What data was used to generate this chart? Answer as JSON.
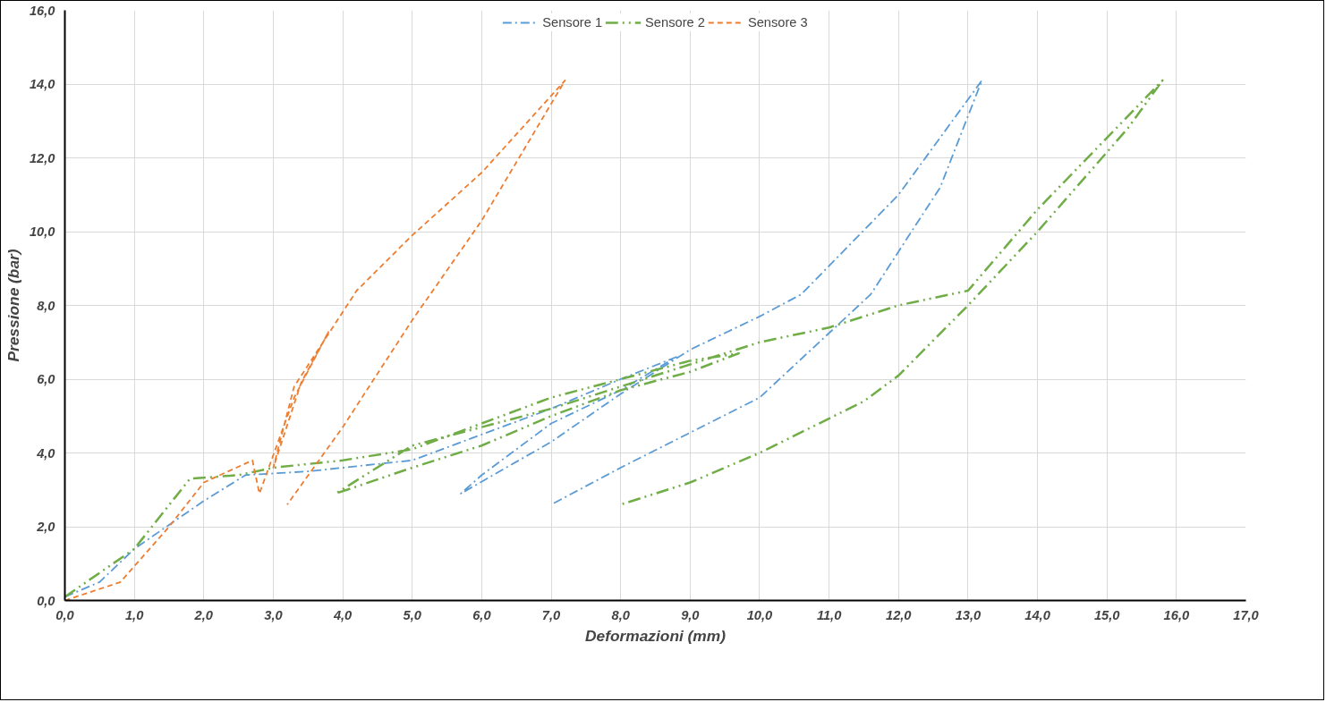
{
  "chart_data": {
    "type": "line",
    "xlabel": "Deformazioni (mm)",
    "ylabel": "Pressione (bar)",
    "legend": "top",
    "grid": true,
    "marker": "none",
    "xlim": [
      0,
      17
    ],
    "ylim": [
      0,
      16
    ],
    "xticks": [
      {
        "value": 0,
        "label": "0,0"
      },
      {
        "value": 1,
        "label": "1,0"
      },
      {
        "value": 2,
        "label": "2,0"
      },
      {
        "value": 3,
        "label": "3,0"
      },
      {
        "value": 4,
        "label": "4,0"
      },
      {
        "value": 5,
        "label": "5,0"
      },
      {
        "value": 6,
        "label": "6,0"
      },
      {
        "value": 7,
        "label": "7,0"
      },
      {
        "value": 8,
        "label": "8,0"
      },
      {
        "value": 9,
        "label": "9,0"
      },
      {
        "value": 10,
        "label": "10,0"
      },
      {
        "value": 11,
        "label": "11,0"
      },
      {
        "value": 12,
        "label": "12,0"
      },
      {
        "value": 13,
        "label": "13,0"
      },
      {
        "value": 14,
        "label": "14,0"
      },
      {
        "value": 15,
        "label": "15,0"
      },
      {
        "value": 16,
        "label": "16,0"
      },
      {
        "value": 17,
        "label": "17,0"
      }
    ],
    "yticks": [
      {
        "value": 0,
        "label": "0,0"
      },
      {
        "value": 2,
        "label": "2,0"
      },
      {
        "value": 4,
        "label": "4,0"
      },
      {
        "value": 6,
        "label": "6,0"
      },
      {
        "value": 8,
        "label": "8,0"
      },
      {
        "value": 10,
        "label": "10,0"
      },
      {
        "value": 12,
        "label": "12,0"
      },
      {
        "value": 14,
        "label": "14,0"
      },
      {
        "value": 16,
        "label": "16,0"
      }
    ],
    "series": [
      {
        "name": "Sensore 1",
        "color": "#5b9bd5",
        "line_style": "dashdot",
        "x": [
          0,
          0.5,
          1,
          2,
          2.6,
          3.5,
          4.5,
          5,
          6,
          7,
          8,
          8.8,
          8,
          7,
          6,
          5.7,
          7,
          8,
          9,
          10,
          10.6,
          12,
          13.2,
          12.6,
          11.6,
          10,
          8,
          7
        ],
        "values": [
          0.1,
          0.5,
          1.4,
          2.7,
          3.4,
          3.5,
          3.7,
          3.8,
          4.5,
          5.2,
          6,
          6.6,
          5.7,
          4.8,
          3.4,
          2.9,
          4.3,
          5.6,
          6.8,
          7.7,
          8.3,
          11,
          14.1,
          11.2,
          8.3,
          5.5,
          3.6,
          2.6
        ]
      },
      {
        "name": "Sensore 2",
        "color": "#70ad47",
        "line_style": "dashdotdot",
        "x": [
          0,
          1,
          1.8,
          2.5,
          3,
          4,
          5,
          6,
          7,
          8,
          9,
          9.7,
          9,
          8,
          7,
          6,
          5,
          3.9,
          5,
          6,
          7,
          8,
          9,
          10,
          11,
          12,
          13,
          14,
          15.8,
          15.3,
          14,
          13,
          12,
          11.5,
          10,
          9,
          8
        ],
        "values": [
          0.1,
          1.4,
          3.3,
          3.4,
          3.6,
          3.8,
          4.1,
          4.8,
          5.5,
          6,
          6.5,
          6.7,
          6.2,
          5.7,
          5,
          4.2,
          3.6,
          2.9,
          4.2,
          4.7,
          5.2,
          5.8,
          6.4,
          7,
          7.4,
          8,
          8.4,
          10.6,
          14.1,
          12.8,
          10,
          8,
          6.1,
          5.4,
          4,
          3.2,
          2.6
        ]
      },
      {
        "name": "Sensore 3",
        "color": "#ed7d31",
        "line_style": "dashed",
        "x": [
          0,
          0.8,
          1.5,
          2,
          2.7,
          2.8,
          3.3,
          3.8,
          3.4,
          3,
          3.3,
          4.2,
          5,
          6,
          7.2,
          6,
          5,
          4,
          3.2
        ],
        "values": [
          0,
          0.5,
          2,
          3.2,
          3.8,
          2.9,
          5.5,
          7.3,
          5.9,
          3.6,
          5.8,
          8.4,
          9.9,
          11.6,
          14.1,
          10.3,
          7.6,
          4.7,
          2.6
        ]
      }
    ]
  }
}
